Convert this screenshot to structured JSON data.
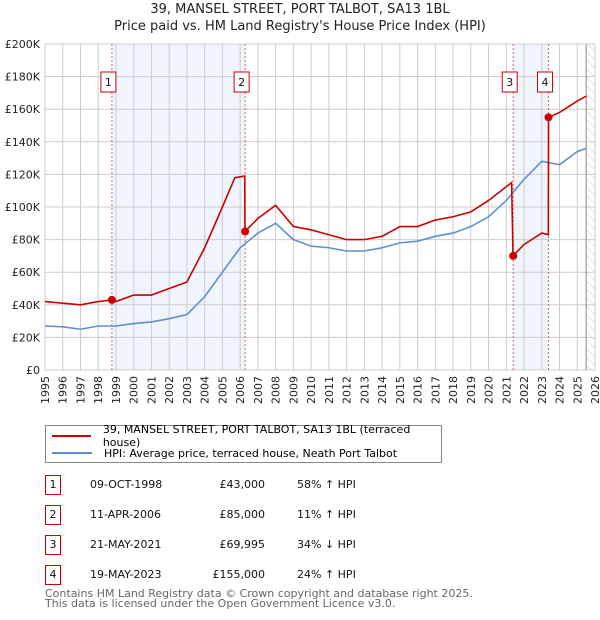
{
  "chart_data": {
    "type": "line",
    "title": "39, MANSEL STREET, PORT TALBOT, SA13 1BL",
    "subtitle": "Price paid vs. HM Land Registry's House Price Index (HPI)",
    "xlim": [
      1995,
      2026
    ],
    "ylim": [
      0,
      200000
    ],
    "y_ticks": [
      "£0",
      "£20K",
      "£40K",
      "£60K",
      "£80K",
      "£100K",
      "£120K",
      "£140K",
      "£160K",
      "£180K",
      "£200K"
    ],
    "x_ticks": [
      "1995",
      "1996",
      "1997",
      "1998",
      "1999",
      "2000",
      "2001",
      "2002",
      "2003",
      "2004",
      "2005",
      "2006",
      "2007",
      "2008",
      "2009",
      "2010",
      "2011",
      "2012",
      "2013",
      "2014",
      "2015",
      "2016",
      "2017",
      "2018",
      "2019",
      "2020",
      "2021",
      "2022",
      "2023",
      "2024",
      "2025",
      "2026"
    ],
    "grid": true,
    "series": [
      {
        "name": "39, MANSEL STREET, PORT TALBOT, SA13 1BL (terraced house)",
        "color": "#cc0000",
        "x": [
          1995,
          1996,
          1997,
          1998,
          1998.77,
          1999,
          2000,
          2001,
          2002,
          2003,
          2004,
          2005,
          2005.7,
          2006.26,
          2006.27,
          2007,
          2008,
          2009,
          2010,
          2011,
          2012,
          2013,
          2014,
          2015,
          2016,
          2017,
          2018,
          2019,
          2020,
          2021.3,
          2021.38,
          2022,
          2023,
          2023.37,
          2023.38,
          2024,
          2025,
          2025.5
        ],
        "y": [
          42000,
          41000,
          40000,
          42000,
          43000,
          42000,
          46000,
          46000,
          50000,
          54000,
          75000,
          100000,
          118000,
          119000,
          85000,
          93000,
          101000,
          88000,
          86000,
          83000,
          80000,
          80000,
          82000,
          88000,
          88000,
          92000,
          94000,
          97000,
          104000,
          115000,
          69995,
          77000,
          84000,
          83000,
          155000,
          158000,
          165000,
          168000
        ]
      },
      {
        "name": "HPI: Average price, terraced house, Neath Port Talbot",
        "color": "#5b8fd0",
        "x": [
          1995,
          1996,
          1997,
          1998,
          1999,
          2000,
          2001,
          2002,
          2003,
          2004,
          2005,
          2006,
          2007,
          2008,
          2009,
          2010,
          2011,
          2012,
          2013,
          2014,
          2015,
          2016,
          2017,
          2018,
          2019,
          2020,
          2021,
          2022,
          2023,
          2024,
          2025,
          2025.5
        ],
        "y": [
          27000,
          26500,
          25000,
          27000,
          27000,
          28500,
          29500,
          31500,
          34000,
          45000,
          60000,
          75000,
          84000,
          90000,
          80000,
          76000,
          75000,
          73000,
          73000,
          75000,
          78000,
          79000,
          82000,
          84000,
          88000,
          94000,
          104000,
          117000,
          128000,
          126000,
          134000,
          136000
        ]
      }
    ],
    "sales": [
      {
        "num": "1",
        "x": 1998.77,
        "y": 43000,
        "date": "09-OCT-1998",
        "price": "£43,000",
        "hpi": "58% ↑ HPI"
      },
      {
        "num": "2",
        "x": 2006.28,
        "y": 85000,
        "date": "11-APR-2006",
        "price": "£85,000",
        "hpi": "11% ↑ HPI"
      },
      {
        "num": "3",
        "x": 2021.39,
        "y": 69995,
        "date": "21-MAY-2021",
        "price": "£69,995",
        "hpi": "34% ↓ HPI"
      },
      {
        "num": "4",
        "x": 2023.38,
        "y": 155000,
        "date": "19-MAY-2023",
        "price": "£155,000",
        "hpi": "24% ↑ HPI"
      }
    ],
    "forecast_from": 2025.5
  },
  "footer": {
    "line1": "Contains HM Land Registry data © Crown copyright and database right 2025.",
    "line2": "This data is licensed under the Open Government Licence v3.0."
  }
}
